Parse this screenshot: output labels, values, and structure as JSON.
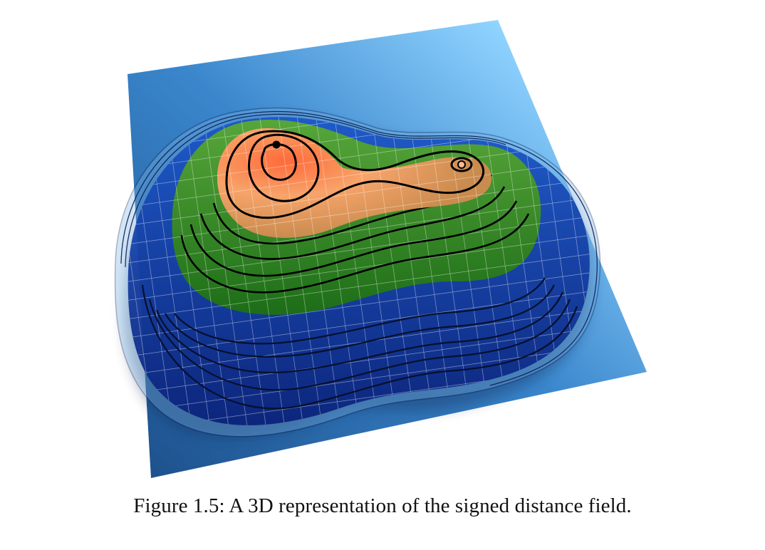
{
  "figure": {
    "caption": "Figure 1.5: A 3D representation of the signed distance field.",
    "colors": {
      "plane_dark": "#1f5d9c",
      "plane_light": "#bff6ff",
      "blue_band": "#0b2a8e",
      "green_band": "#2f8a1e",
      "peak": "#ff7a3c",
      "contour": "#000000",
      "grid": "#ffffff"
    }
  }
}
